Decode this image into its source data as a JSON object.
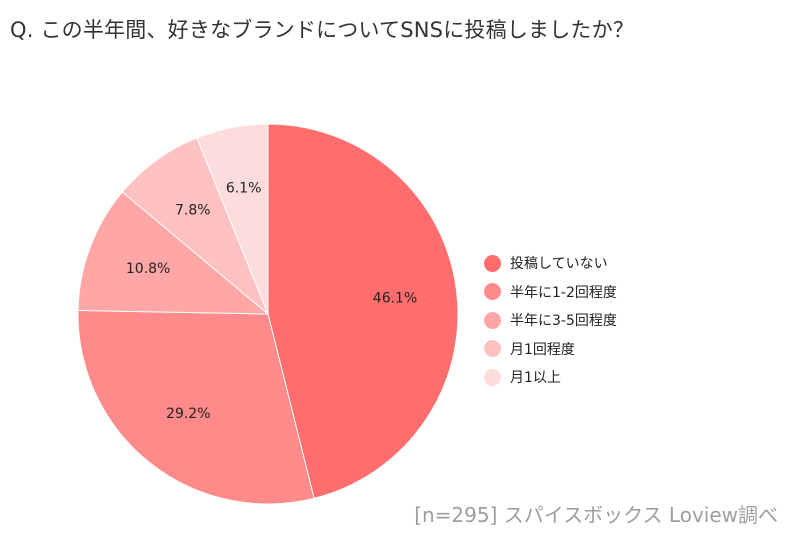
{
  "title": "Q. この半年間、好きなブランドについてSNSに投稿しましたか？",
  "source": "[n=295]  スパイスボックス Loview調べ",
  "chart_data": {
    "type": "pie",
    "title": "Q. この半年間、好きなブランドについてSNSに投稿しましたか？",
    "legend_position": "right",
    "slices": [
      {
        "label": "投稿していない",
        "value": 46.1,
        "display": "46.1%",
        "color": "#ff6d6d"
      },
      {
        "label": "半年に1-2回程度",
        "value": 29.2,
        "display": "29.2%",
        "color": "#ff8a8a"
      },
      {
        "label": "半年に3-5回程度",
        "value": 10.8,
        "display": "10.8%",
        "color": "#ffa6a6"
      },
      {
        "label": "月1回程度",
        "value": 7.8,
        "display": "7.8%",
        "color": "#ffc1c1"
      },
      {
        "label": "月1以上",
        "value": 6.1,
        "display": "6.1%",
        "color": "#ffdcdc"
      }
    ]
  }
}
